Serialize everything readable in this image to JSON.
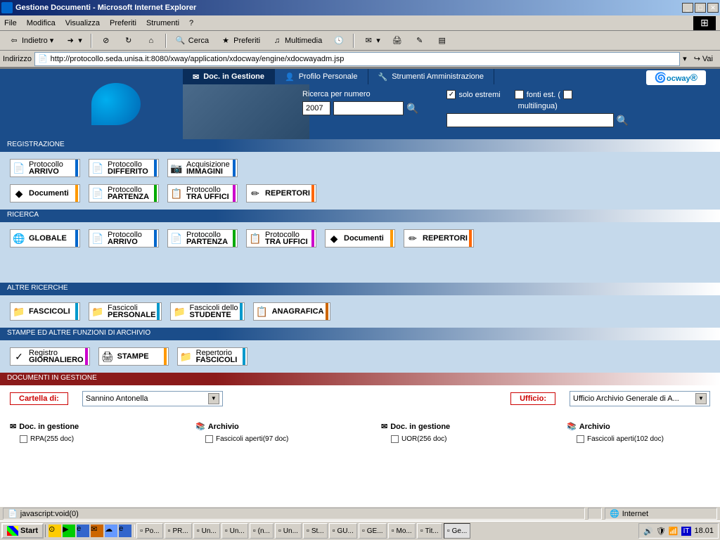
{
  "window": {
    "title": "Gestione Documenti - Microsoft Internet Explorer"
  },
  "menubar": {
    "file": "File",
    "modifica": "Modifica",
    "visualizza": "Visualizza",
    "preferiti": "Preferiti",
    "strumenti": "Strumenti",
    "help": "?"
  },
  "toolbar": {
    "indietro": "Indietro",
    "cerca": "Cerca",
    "preferiti": "Preferiti",
    "multimedia": "Multimedia"
  },
  "addressbar": {
    "label": "Indirizzo",
    "url": "http://protocollo.seda.unisa.it:8080/xway/application/xdocway/engine/xdocwayadm.jsp",
    "vai": "Vai"
  },
  "nav": {
    "tab1": "Doc. in Gestione",
    "tab2": "Profilo Personale",
    "tab3": "Strumenti Amministrazione",
    "brand": "ocway"
  },
  "search": {
    "num_label": "Ricerca per numero",
    "num_value": "2007",
    "solo_estremi": "solo estremi",
    "fonti_est": "fonti est. (",
    "multilingua": "multilingua)",
    "solo_checked": "✓"
  },
  "sections": {
    "registrazione": {
      "title": "REGISTRAZIONE",
      "buttons": [
        {
          "l1": "Protocollo",
          "l2": "ARRIVO",
          "color": "#0066cc",
          "icon": "📄"
        },
        {
          "l1": "Protocollo",
          "l2": "DIFFERITO",
          "color": "#0066cc",
          "icon": "📄"
        },
        {
          "l1": "Acquisizione",
          "l2": "IMMAGINI",
          "color": "#0066cc",
          "icon": "📷"
        },
        {
          "l1": "",
          "l2": "Documenti",
          "color": "#ff9900",
          "icon": "◆"
        },
        {
          "l1": "Protocollo",
          "l2": "PARTENZA",
          "color": "#00aa00",
          "icon": "📄"
        },
        {
          "l1": "Protocollo",
          "l2": "TRA UFFICI",
          "color": "#cc00cc",
          "icon": "📋"
        },
        {
          "l1": "",
          "l2": "REPERTORI",
          "color": "#ff6600",
          "icon": "✏"
        }
      ]
    },
    "ricerca": {
      "title": "RICERCA",
      "buttons": [
        {
          "l1": "",
          "l2": "GLOBALE",
          "color": "#0066cc",
          "icon": "🌐"
        },
        {
          "l1": "Protocollo",
          "l2": "ARRIVO",
          "color": "#0066cc",
          "icon": "📄"
        },
        {
          "l1": "Protocollo",
          "l2": "PARTENZA",
          "color": "#00aa00",
          "icon": "📄"
        },
        {
          "l1": "Protocollo",
          "l2": "TRA UFFICI",
          "color": "#cc00cc",
          "icon": "📋"
        },
        {
          "l1": "",
          "l2": "Documenti",
          "color": "#ff9900",
          "icon": "◆"
        },
        {
          "l1": "",
          "l2": "REPERTORI",
          "color": "#ff6600",
          "icon": "✏"
        }
      ]
    },
    "altre": {
      "title": "ALTRE RICERCHE",
      "buttons": [
        {
          "l1": "",
          "l2": "FASCICOLI",
          "color": "#0099cc",
          "icon": "📁"
        },
        {
          "l1": "Fascicoli",
          "l2": "PERSONALE",
          "color": "#0099cc",
          "icon": "📁"
        },
        {
          "l1": "Fascicoli dello",
          "l2": "STUDENTE",
          "color": "#0099cc",
          "icon": "📁"
        },
        {
          "l1": "",
          "l2": "ANAGRAFICA",
          "color": "#cc6600",
          "icon": "📋"
        }
      ]
    },
    "stampe": {
      "title": "STAMPE ED ALTRE FUNZIONI DI ARCHIVIO",
      "buttons": [
        {
          "l1": "Registro",
          "l2": "GIORNALIERO",
          "color": "#cc00cc",
          "icon": "✓"
        },
        {
          "l1": "",
          "l2": "STAMPE",
          "color": "#ff9900",
          "icon": "🖨"
        },
        {
          "l1": "Repertorio",
          "l2": "FASCICOLI",
          "color": "#0099cc",
          "icon": "📁"
        }
      ]
    },
    "documenti": {
      "title": "DOCUMENTI IN GESTIONE",
      "cartella_label": "Cartella di:",
      "cartella_value": "Sannino Antonella",
      "ufficio_label": "Ufficio:",
      "ufficio_value": "Ufficio Archivio Generale di A...",
      "cols": [
        {
          "hdr": "Doc. in gestione",
          "icon": "✉",
          "item": "RPA(255 doc)"
        },
        {
          "hdr": "Archivio",
          "icon": "📚",
          "item": "Fascicoli aperti(97 doc)"
        },
        {
          "hdr": "Doc. in gestione",
          "icon": "✉",
          "item": "UOR(256 doc)"
        },
        {
          "hdr": "Archivio",
          "icon": "📚",
          "item": "Fascicoli aperti(102 doc)"
        }
      ]
    }
  },
  "statusbar": {
    "text": "javascript:void(0)",
    "zone": "Internet"
  },
  "taskbar": {
    "start": "Start",
    "tasks": [
      "Po...",
      "PR...",
      "Un...",
      "Un...",
      "(n...",
      "Un...",
      "St...",
      "GU...",
      "GE...",
      "Mo...",
      "Tit...",
      "Ge..."
    ],
    "lang": "IT",
    "time": "18.01"
  }
}
